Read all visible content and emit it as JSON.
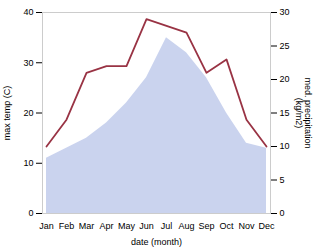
{
  "chart_data": {
    "type": "combo",
    "categories": [
      "Jan",
      "Feb",
      "Mar",
      "Apr",
      "May",
      "Jun",
      "Jul",
      "Aug",
      "Sep",
      "Oct",
      "Nov",
      "Dec"
    ],
    "xlabel": "date (month)",
    "ylabel": "max temp (C)",
    "y2label": "med. precipitation\n(kg/m2)",
    "series": [
      {
        "type": "area",
        "color": "#b8c4e8",
        "values": [
          11,
          13,
          15,
          18,
          22,
          27,
          35,
          32,
          27,
          20,
          14,
          13
        ]
      },
      {
        "type": "line",
        "color": "#993344",
        "axis": "y2",
        "values": [
          10,
          14,
          21,
          22,
          22,
          29,
          28,
          27,
          21,
          23,
          14,
          10
        ]
      }
    ],
    "ylim": [
      0,
      40
    ],
    "yticks": [
      0,
      10,
      20,
      30,
      40
    ],
    "y2lim": [
      0,
      30
    ],
    "y2ticks": [
      0,
      5,
      10,
      15,
      20,
      25,
      30
    ],
    "grid": false
  }
}
